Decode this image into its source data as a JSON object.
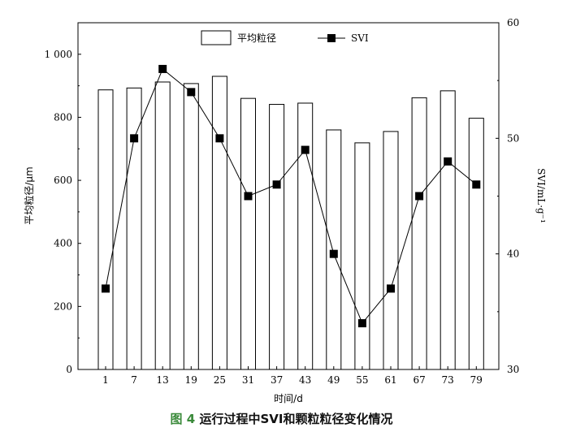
{
  "caption": {
    "figure_label": "图 4",
    "text": "运行过程中SVI和颗粒粒径变化情况"
  },
  "chart_data": {
    "type": "bar+line",
    "categories": [
      "1",
      "7",
      "13",
      "19",
      "25",
      "31",
      "37",
      "43",
      "49",
      "55",
      "61",
      "67",
      "73",
      "79"
    ],
    "series": [
      {
        "name": "平均粒径",
        "type": "bar",
        "axis": "left",
        "values": [
          887,
          893,
          912,
          907,
          930,
          860,
          841,
          845,
          760,
          719,
          755,
          862,
          884,
          797
        ]
      },
      {
        "name": "SVI",
        "type": "line",
        "marker": "square",
        "axis": "right",
        "values": [
          37,
          50,
          56,
          54,
          50,
          45,
          46,
          49,
          40,
          34,
          37,
          45,
          48,
          46
        ]
      }
    ],
    "xlabel": "时间/d",
    "ylabel_left": "平均粒径/μm",
    "ylabel_right": "SVI/mL·g⁻¹",
    "ylim_left": [
      0,
      1100
    ],
    "yticks_left": [
      0,
      200,
      400,
      600,
      800,
      1000
    ],
    "ytick_labels_left": [
      "0",
      "200",
      "400",
      "600",
      "800",
      "1 000"
    ],
    "ylim_right": [
      30,
      60
    ],
    "yticks_right": [
      30,
      40,
      50,
      60
    ],
    "ytick_labels_right": [
      "30",
      "40",
      "50",
      "60"
    ],
    "legend_position": "top",
    "grid": false
  }
}
